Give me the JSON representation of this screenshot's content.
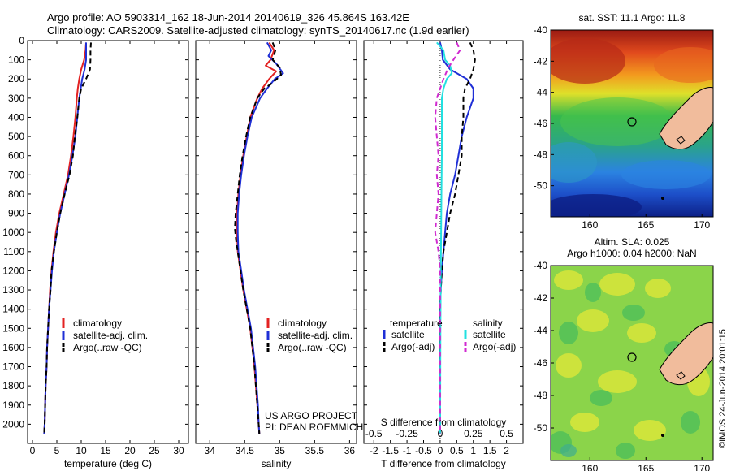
{
  "header": {
    "line1": "Argo profile: AO 5903314_162 18-Jun-2014 20140619_326 45.864S 163.42E",
    "line2": "Climatology: CARS2009. Satellite-adjusted climatology: synTS_20140617.nc (1.9d earlier)"
  },
  "colors": {
    "climatology": "#e32222",
    "satellite": "#1f2fd6",
    "argo": "#000000",
    "sal_satellite": "#22e0e0",
    "sal_argo": "#d02ad0"
  },
  "chart_data": [
    {
      "type": "line",
      "xlabel": "temperature (deg C)",
      "xlim": [
        -1,
        32
      ],
      "xticks": [
        "0",
        "5",
        "10",
        "15",
        "20",
        "25",
        "30"
      ],
      "ylim": [
        0,
        2100
      ],
      "yticks": [
        "0",
        "100",
        "200",
        "300",
        "400",
        "500",
        "600",
        "700",
        "800",
        "900",
        "1000",
        "1100",
        "1200",
        "1300",
        "1400",
        "1500",
        "1600",
        "1700",
        "1800",
        "1900",
        "2000"
      ],
      "legend": [
        "climatology",
        "satellite-adj. clim.",
        "Argo(..raw -QC)"
      ],
      "series": [
        {
          "name": "climatology",
          "key": "climatology",
          "dash": "none",
          "points": [
            [
              11.0,
              10
            ],
            [
              10.9,
              50
            ],
            [
              10.6,
              100
            ],
            [
              10.0,
              150
            ],
            [
              9.6,
              200
            ],
            [
              9.3,
              250
            ],
            [
              9.1,
              300
            ],
            [
              8.8,
              400
            ],
            [
              8.4,
              500
            ],
            [
              7.9,
              600
            ],
            [
              7.3,
              700
            ],
            [
              6.4,
              800
            ],
            [
              5.5,
              900
            ],
            [
              4.8,
              1000
            ],
            [
              4.3,
              1100
            ],
            [
              3.9,
              1200
            ],
            [
              3.6,
              1300
            ],
            [
              3.4,
              1400
            ],
            [
              3.2,
              1500
            ],
            [
              3.0,
              1600
            ],
            [
              2.9,
              1700
            ],
            [
              2.7,
              1800
            ],
            [
              2.6,
              1900
            ],
            [
              2.5,
              2000
            ],
            [
              2.4,
              2050
            ]
          ]
        },
        {
          "name": "satellite-adj. clim.",
          "key": "satellite",
          "dash": "none",
          "points": [
            [
              11.0,
              10
            ],
            [
              11.0,
              50
            ],
            [
              11.0,
              100
            ],
            [
              10.7,
              150
            ],
            [
              10.2,
              200
            ],
            [
              9.9,
              250
            ],
            [
              9.6,
              300
            ],
            [
              9.2,
              400
            ],
            [
              8.8,
              500
            ],
            [
              8.2,
              600
            ],
            [
              7.5,
              700
            ],
            [
              6.6,
              800
            ],
            [
              5.7,
              900
            ],
            [
              5.0,
              1000
            ],
            [
              4.4,
              1100
            ],
            [
              4.0,
              1200
            ],
            [
              3.7,
              1300
            ],
            [
              3.4,
              1400
            ],
            [
              3.2,
              1500
            ],
            [
              3.0,
              1600
            ],
            [
              2.9,
              1700
            ],
            [
              2.7,
              1800
            ],
            [
              2.6,
              1900
            ],
            [
              2.5,
              2000
            ],
            [
              2.4,
              2050
            ]
          ]
        },
        {
          "name": "Argo(..raw -QC)",
          "key": "argo",
          "dash": "6,4",
          "points": [
            [
              12.0,
              10
            ],
            [
              11.9,
              50
            ],
            [
              11.9,
              100
            ],
            [
              11.8,
              150
            ],
            [
              11.0,
              200
            ],
            [
              10.0,
              250
            ],
            [
              9.6,
              300
            ],
            [
              9.2,
              400
            ],
            [
              8.7,
              500
            ],
            [
              8.3,
              600
            ],
            [
              7.6,
              700
            ],
            [
              6.6,
              800
            ],
            [
              5.7,
              900
            ],
            [
              5.0,
              1000
            ],
            [
              4.4,
              1100
            ],
            [
              3.9,
              1200
            ],
            [
              3.7,
              1300
            ],
            [
              3.4,
              1400
            ],
            [
              3.2,
              1500
            ],
            [
              3.0,
              1600
            ],
            [
              2.9,
              1700
            ],
            [
              2.7,
              1800
            ],
            [
              2.6,
              1900
            ],
            [
              2.5,
              2000
            ],
            [
              2.4,
              2050
            ]
          ]
        }
      ]
    },
    {
      "type": "line",
      "xlabel": "salinity",
      "xlim": [
        33.8,
        36.1
      ],
      "xticks": [
        "34",
        "34.5",
        "35",
        "35.5",
        "36"
      ],
      "ylim": [
        0,
        2100
      ],
      "legend": [
        "climatology",
        "satellite-adj. clim.",
        "Argo(..raw -QC)"
      ],
      "annotation": [
        "US ARGO PROJECT",
        "PI: DEAN ROEMMICH"
      ],
      "series": [
        {
          "name": "climatology",
          "key": "climatology",
          "dash": "none",
          "points": [
            [
              34.85,
              10
            ],
            [
              34.92,
              50
            ],
            [
              34.87,
              100
            ],
            [
              34.8,
              130
            ],
            [
              34.95,
              160
            ],
            [
              34.85,
              200
            ],
            [
              34.75,
              250
            ],
            [
              34.68,
              300
            ],
            [
              34.58,
              400
            ],
            [
              34.53,
              500
            ],
            [
              34.48,
              600
            ],
            [
              34.44,
              700
            ],
            [
              34.41,
              800
            ],
            [
              34.39,
              900
            ],
            [
              34.39,
              1000
            ],
            [
              34.4,
              1100
            ],
            [
              34.44,
              1200
            ],
            [
              34.48,
              1300
            ],
            [
              34.53,
              1400
            ],
            [
              34.58,
              1500
            ],
            [
              34.61,
              1600
            ],
            [
              34.64,
              1700
            ],
            [
              34.66,
              1800
            ],
            [
              34.68,
              1900
            ],
            [
              34.7,
              2000
            ],
            [
              34.71,
              2050
            ]
          ]
        },
        {
          "name": "satellite-adj. clim.",
          "key": "satellite",
          "dash": "none",
          "points": [
            [
              34.82,
              10
            ],
            [
              34.88,
              50
            ],
            [
              34.84,
              80
            ],
            [
              34.95,
              120
            ],
            [
              35.05,
              170
            ],
            [
              34.93,
              200
            ],
            [
              34.82,
              250
            ],
            [
              34.72,
              300
            ],
            [
              34.6,
              400
            ],
            [
              34.54,
              500
            ],
            [
              34.49,
              600
            ],
            [
              34.45,
              700
            ],
            [
              34.42,
              800
            ],
            [
              34.4,
              900
            ],
            [
              34.4,
              1000
            ],
            [
              34.41,
              1100
            ],
            [
              34.45,
              1200
            ],
            [
              34.49,
              1300
            ],
            [
              34.54,
              1400
            ],
            [
              34.59,
              1500
            ],
            [
              34.62,
              1600
            ],
            [
              34.65,
              1700
            ],
            [
              34.67,
              1800
            ],
            [
              34.69,
              1900
            ],
            [
              34.7,
              2000
            ],
            [
              34.71,
              2050
            ]
          ]
        },
        {
          "name": "Argo(..raw -QC)",
          "key": "argo",
          "dash": "6,4",
          "points": [
            [
              34.9,
              10
            ],
            [
              34.94,
              50
            ],
            [
              34.9,
              100
            ],
            [
              35.0,
              140
            ],
            [
              35.02,
              180
            ],
            [
              34.9,
              220
            ],
            [
              34.78,
              250
            ],
            [
              34.68,
              300
            ],
            [
              34.58,
              400
            ],
            [
              34.52,
              500
            ],
            [
              34.47,
              600
            ],
            [
              34.43,
              700
            ],
            [
              34.4,
              800
            ],
            [
              34.37,
              900
            ],
            [
              34.36,
              980
            ],
            [
              34.38,
              1050
            ],
            [
              34.4,
              1100
            ],
            [
              34.44,
              1200
            ],
            [
              34.48,
              1300
            ],
            [
              34.53,
              1400
            ],
            [
              34.58,
              1500
            ],
            [
              34.61,
              1600
            ],
            [
              34.64,
              1700
            ],
            [
              34.66,
              1800
            ],
            [
              34.68,
              1900
            ],
            [
              34.7,
              2000
            ],
            [
              34.71,
              2050
            ]
          ]
        }
      ]
    },
    {
      "type": "line",
      "xlabel": "T difference from climatology",
      "xlabel2": "S difference from climatology",
      "xlim": [
        -2.3,
        2.5
      ],
      "xticks": [
        "-2",
        "-1.5",
        "-1",
        "-0.5",
        "0",
        "0.5",
        "1",
        "1.5",
        "2"
      ],
      "xticks2": [
        "-0.5",
        "-0.25",
        "0",
        "0.25",
        "0.5"
      ],
      "ylim": [
        0,
        2100
      ],
      "legend_titles": [
        "temperature",
        "salinity"
      ],
      "legend": [
        "satellite",
        "Argo(-adj)",
        "satellite",
        "Argo(-adj)"
      ],
      "series": [
        {
          "name": "satellite",
          "key": "satellite",
          "dash": "none",
          "points": [
            [
              0.0,
              10
            ],
            [
              0.05,
              50
            ],
            [
              0.08,
              100
            ],
            [
              0.3,
              150
            ],
            [
              0.8,
              200
            ],
            [
              1.0,
              250
            ],
            [
              1.0,
              300
            ],
            [
              0.8,
              400
            ],
            [
              0.65,
              500
            ],
            [
              0.55,
              600
            ],
            [
              0.45,
              700
            ],
            [
              0.3,
              800
            ],
            [
              0.2,
              900
            ],
            [
              0.15,
              1000
            ],
            [
              0.1,
              1100
            ],
            [
              0.05,
              1200
            ],
            [
              0.02,
              1300
            ],
            [
              0.0,
              1400
            ],
            [
              0.0,
              1600
            ],
            [
              0.0,
              2050
            ]
          ]
        },
        {
          "name": "Argo(-adj)",
          "key": "argo",
          "dash": "6,4",
          "points": [
            [
              0.9,
              10
            ],
            [
              1.0,
              50
            ],
            [
              1.05,
              100
            ],
            [
              1.0,
              150
            ],
            [
              0.9,
              200
            ],
            [
              0.75,
              250
            ],
            [
              0.7,
              300
            ],
            [
              0.7,
              400
            ],
            [
              0.65,
              500
            ],
            [
              0.65,
              600
            ],
            [
              0.55,
              700
            ],
            [
              0.45,
              800
            ],
            [
              0.3,
              900
            ],
            [
              0.2,
              1000
            ],
            [
              0.1,
              1100
            ],
            [
              0.05,
              1200
            ],
            [
              0.02,
              1300
            ],
            [
              0.0,
              1400
            ],
            [
              0.0,
              1600
            ],
            [
              0.0,
              2050
            ]
          ]
        },
        {
          "name": "satellite",
          "key": "sal_satellite",
          "dash": "none",
          "points": [
            [
              -0.1,
              10
            ],
            [
              0.1,
              50
            ],
            [
              0.15,
              100
            ],
            [
              0.3,
              130
            ],
            [
              0.35,
              170
            ],
            [
              0.2,
              200
            ],
            [
              0.1,
              250
            ],
            [
              0.05,
              300
            ],
            [
              0.05,
              400
            ],
            [
              0.05,
              600
            ],
            [
              0.04,
              800
            ],
            [
              0.03,
              1000
            ],
            [
              0.02,
              1200
            ],
            [
              0.01,
              1500
            ],
            [
              0.0,
              2050
            ]
          ]
        },
        {
          "name": "Argo(-adj)",
          "key": "sal_argo",
          "dash": "6,4",
          "points": [
            [
              0.5,
              10
            ],
            [
              0.6,
              50
            ],
            [
              0.4,
              100
            ],
            [
              0.25,
              140
            ],
            [
              0.1,
              200
            ],
            [
              -0.1,
              300
            ],
            [
              -0.15,
              400
            ],
            [
              -0.1,
              500
            ],
            [
              -0.05,
              600
            ],
            [
              -0.1,
              700
            ],
            [
              -0.05,
              800
            ],
            [
              -0.1,
              900
            ],
            [
              -0.15,
              1000
            ],
            [
              -0.05,
              1100
            ],
            [
              0.0,
              1200
            ],
            [
              0.0,
              1500
            ],
            [
              0.0,
              2050
            ]
          ]
        }
      ]
    }
  ],
  "map_sst": {
    "title": "sat. SST: 11.1  Argo: 11.8",
    "xticks": [
      "160",
      "165",
      "170"
    ],
    "yticks": [
      "-40",
      "-42",
      "-44",
      "-46",
      "-48",
      "-50"
    ],
    "xlim": [
      156.5,
      171
    ],
    "ylim": [
      -52,
      -40
    ],
    "marker": [
      163.42,
      -45.86
    ]
  },
  "map_sla": {
    "title_line1": "Altim. SLA: 0.025",
    "title_line2": "Argo h1000: 0.04 h2000: NaN",
    "xticks": [
      "160",
      "165",
      "170"
    ],
    "yticks": [
      "-40",
      "-42",
      "-44",
      "-46",
      "-48",
      "-50"
    ],
    "xlim": [
      156.5,
      171
    ],
    "ylim": [
      -52,
      -40
    ],
    "marker": [
      163.42,
      -45.86
    ]
  },
  "stamp": "©IMOS 24-Jun-2014 20:01:15"
}
